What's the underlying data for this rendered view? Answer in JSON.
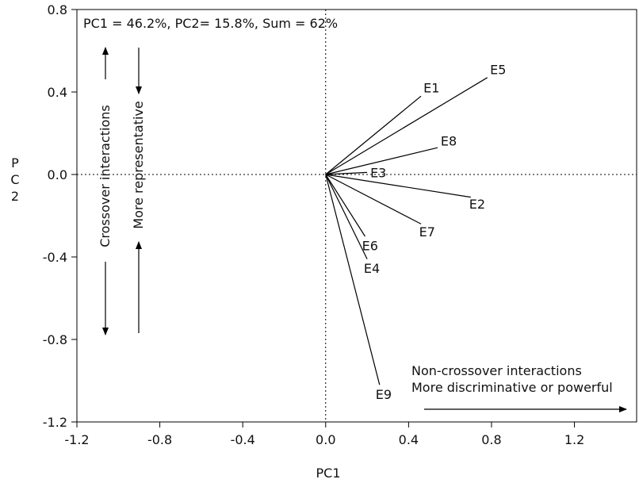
{
  "chart_data": {
    "type": "biplot",
    "title": "PC1 = 46.2%, PC2= 15.8%, Sum = 62%",
    "xlabel": "PC1",
    "ylabel": "P\nC\n2",
    "xlim": [
      -1.2,
      1.5
    ],
    "ylim": [
      -1.2,
      0.8
    ],
    "xticks": [
      -1.2,
      -0.8,
      -0.4,
      0.0,
      0.4,
      0.8,
      1.2
    ],
    "yticks": [
      -1.2,
      -0.8,
      -0.4,
      0.0,
      0.4,
      0.8
    ],
    "xtick_labels": [
      "-1.2",
      "-0.8",
      "-0.4",
      "0.0",
      "0.4",
      "0.8",
      "1.2"
    ],
    "ytick_labels": [
      "-1.2",
      "-0.8",
      "-0.4",
      "0.0",
      "0.4",
      "0.8"
    ],
    "grid": false,
    "reference_lines": {
      "x": 0,
      "y": 0,
      "style": "dotted"
    },
    "vectors": [
      {
        "name": "E1",
        "x": 0.46,
        "y": 0.38
      },
      {
        "name": "E5",
        "x": 0.78,
        "y": 0.47
      },
      {
        "name": "E8",
        "x": 0.54,
        "y": 0.13
      },
      {
        "name": "E3",
        "x": 0.2,
        "y": 0.01
      },
      {
        "name": "E2",
        "x": 0.7,
        "y": -0.11
      },
      {
        "name": "E7",
        "x": 0.46,
        "y": -0.24
      },
      {
        "name": "E6",
        "x": 0.19,
        "y": -0.3
      },
      {
        "name": "E4",
        "x": 0.2,
        "y": -0.41
      },
      {
        "name": "E9",
        "x": 0.26,
        "y": -1.02
      }
    ],
    "annotations": {
      "crossover": "Crossover interactions",
      "representative": "More representative",
      "non_crossover": "Non-crossover interactions",
      "discriminative": "More discriminative or powerful"
    }
  }
}
